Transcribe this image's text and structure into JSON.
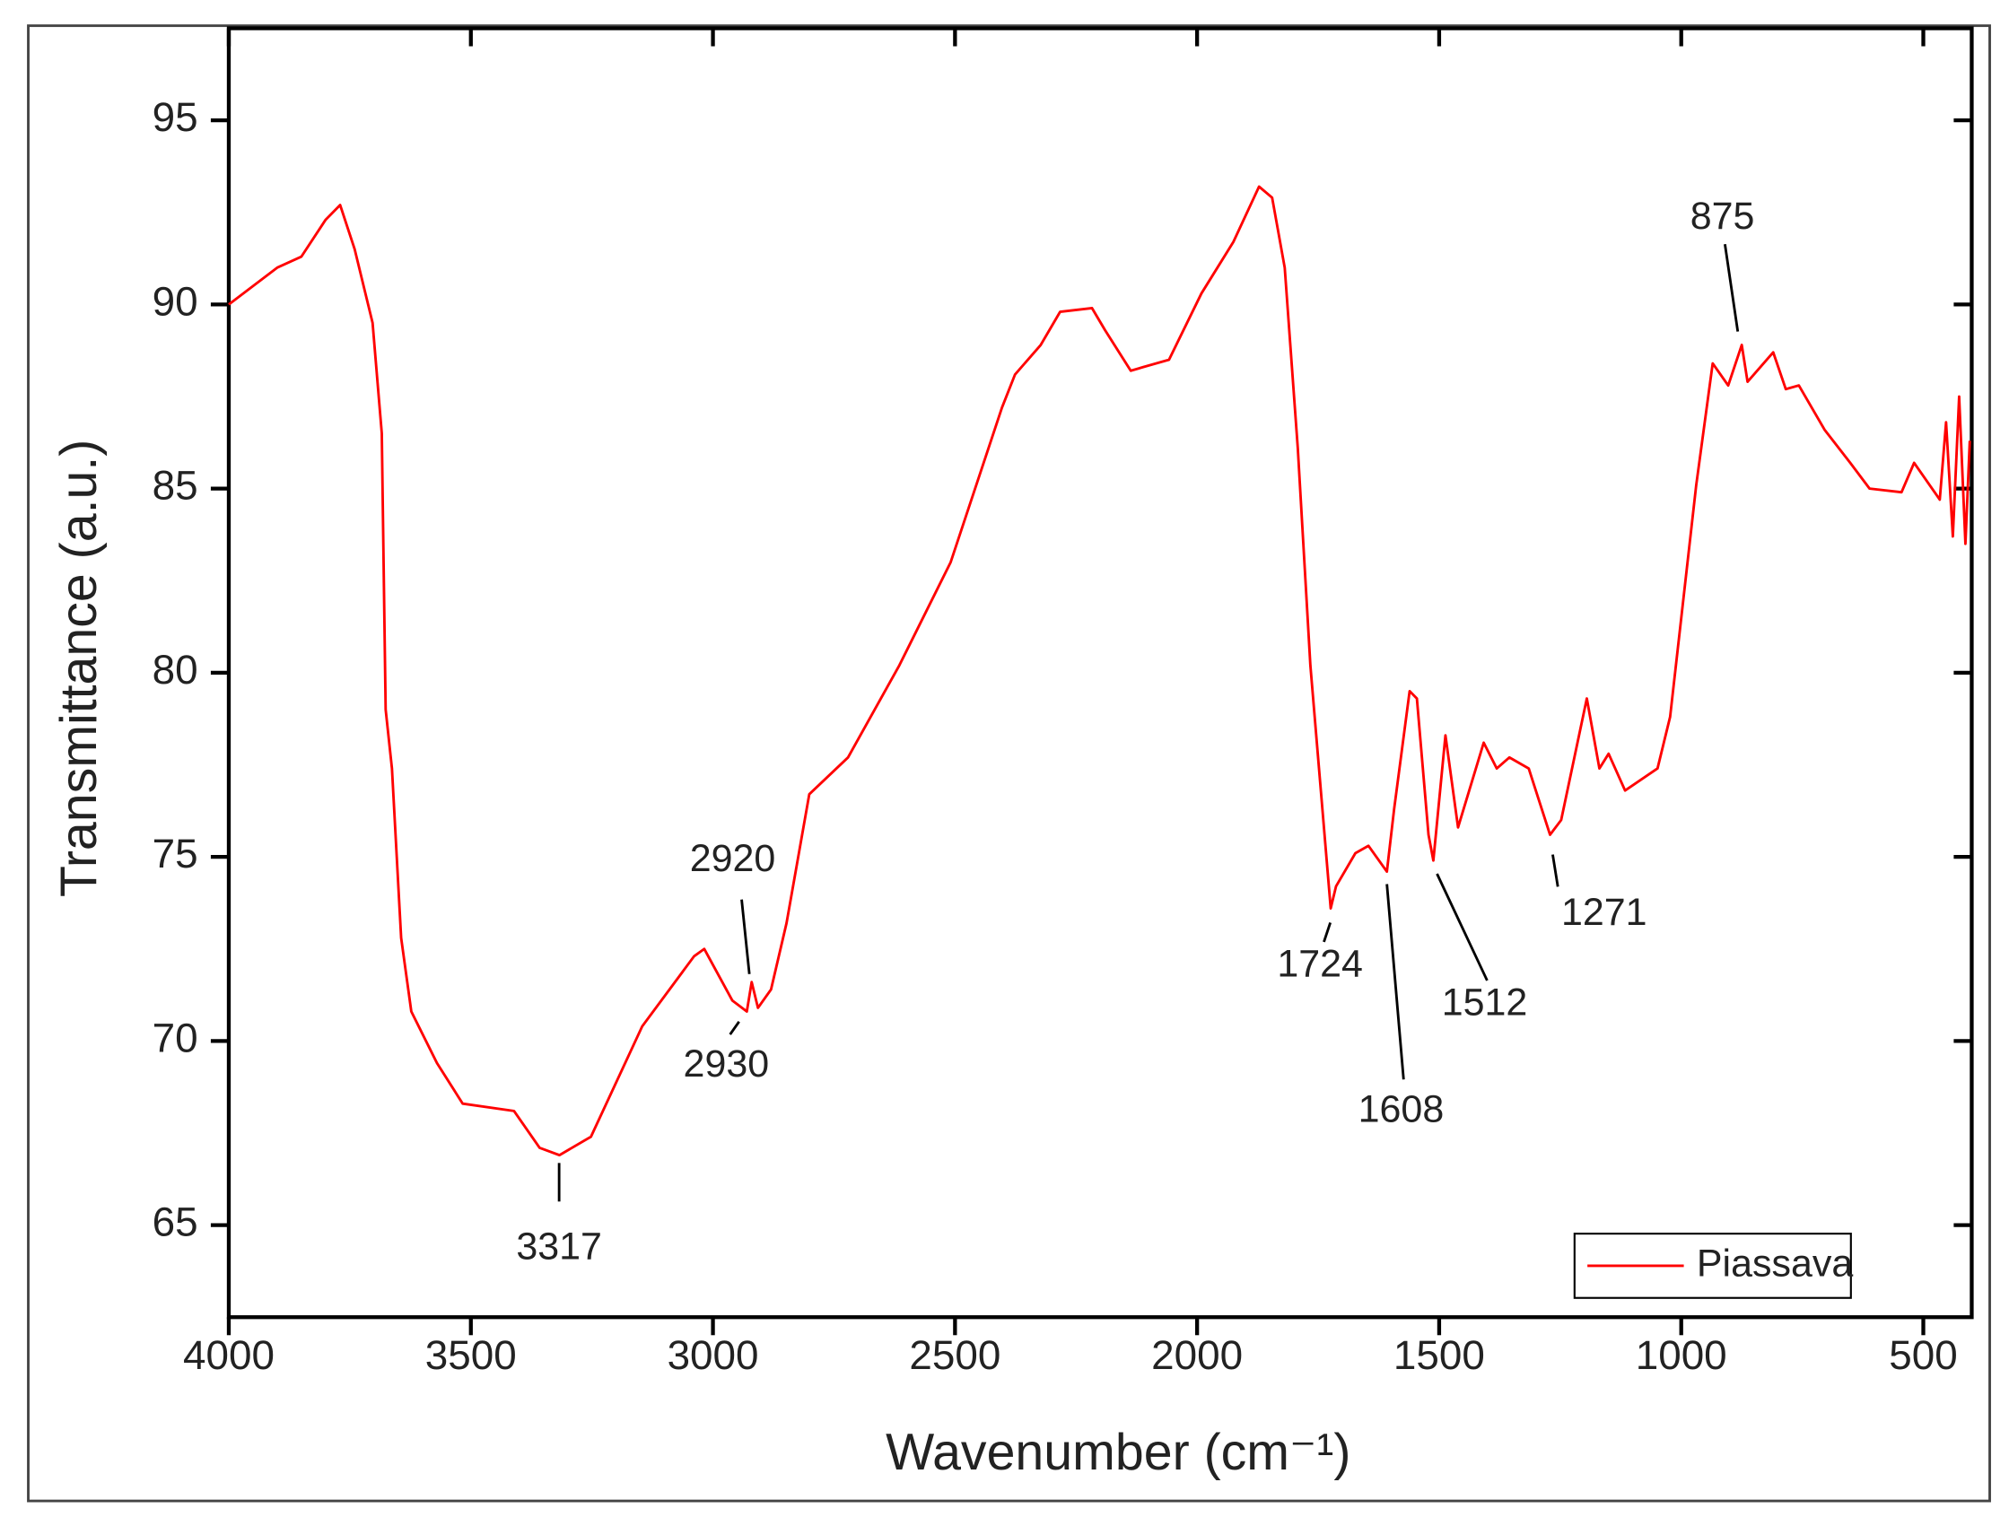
{
  "chart_data": {
    "type": "line",
    "xlabel": "Wavenumber (cm⁻¹)",
    "ylabel": "Transmittance (a.u.)",
    "xlim": [
      4000,
      400
    ],
    "ylim": [
      62.5,
      97.5
    ],
    "xticks": [
      4000,
      3500,
      3000,
      2500,
      2000,
      1500,
      1000,
      500
    ],
    "yticks": [
      65,
      70,
      75,
      80,
      85,
      90,
      95
    ],
    "legend": "lower right",
    "series": [
      {
        "name": "Piassava",
        "color": "#ff0000",
        "x": [
          4000,
          3900,
          3850,
          3800,
          3770,
          3740,
          3703,
          3684,
          3676,
          3663,
          3644,
          3623,
          3570,
          3517,
          3411,
          3358,
          3317,
          3252,
          3146,
          3039,
          3018,
          2960,
          2930,
          2920,
          2907,
          2880,
          2848,
          2801,
          2721,
          2615,
          2509,
          2403,
          2376,
          2323,
          2283,
          2217,
          2190,
          2137,
          2111,
          2058,
          1991,
          1925,
          1872,
          1845,
          1819,
          1792,
          1766,
          1724,
          1713,
          1673,
          1646,
          1608,
          1593,
          1561,
          1546,
          1522,
          1512,
          1487,
          1461,
          1408,
          1381,
          1355,
          1315,
          1271,
          1248,
          1195,
          1169,
          1150,
          1116,
          1049,
          1023,
          969,
          935,
          903,
          875,
          863,
          810,
          784,
          757,
          704,
          651,
          611,
          545,
          519,
          466,
          453,
          439,
          426,
          413,
          404
        ],
        "values": [
          90.0,
          91.0,
          91.3,
          92.3,
          92.7,
          91.5,
          89.5,
          86.5,
          79.0,
          77.4,
          72.8,
          70.8,
          69.4,
          68.3,
          68.1,
          67.1,
          66.9,
          67.4,
          70.4,
          72.3,
          72.5,
          71.1,
          70.8,
          71.6,
          70.9,
          71.4,
          73.2,
          76.7,
          77.7,
          80.2,
          83.0,
          87.2,
          88.1,
          88.9,
          89.8,
          89.9,
          89.3,
          88.2,
          88.3,
          88.5,
          90.3,
          91.7,
          93.2,
          92.9,
          91.0,
          86.1,
          80.2,
          73.6,
          74.2,
          75.1,
          75.3,
          74.6,
          76.3,
          79.5,
          79.3,
          75.6,
          74.9,
          78.3,
          75.8,
          78.1,
          77.4,
          77.7,
          77.4,
          75.6,
          76.0,
          79.3,
          77.4,
          77.8,
          76.8,
          77.4,
          78.8,
          85.1,
          88.4,
          87.8,
          88.9,
          87.9,
          88.7,
          87.7,
          87.8,
          86.6,
          85.7,
          85.0,
          84.9,
          85.7,
          84.7,
          86.8,
          83.7,
          87.5,
          83.5,
          86.3
        ]
      }
    ],
    "annotations": [
      "3317",
      "2920",
      "2930",
      "1724",
      "1608",
      "1512",
      "1271",
      "875"
    ]
  }
}
